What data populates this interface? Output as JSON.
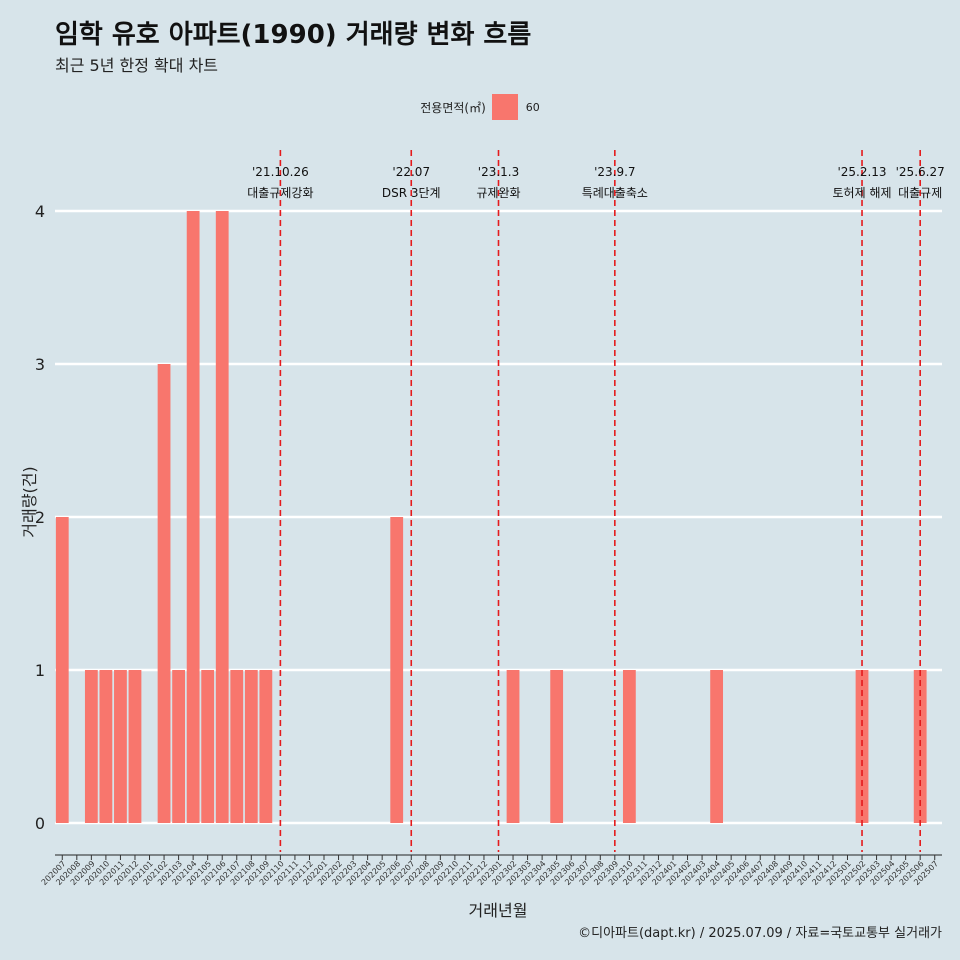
{
  "header": {
    "title": "임학 유호 아파트(1990) 거래량 변화 흐름",
    "subtitle": "최근 5년 한정 확대 차트"
  },
  "legend": {
    "title": "전용면적(㎡)",
    "label": "60",
    "color": "#f8766d"
  },
  "caption": "©디아파트(dapt.kr) / 2025.07.09 / 자료=국토교통부 실거래가",
  "colors": {
    "background": "#d7e4ea",
    "bar": "#f8766d",
    "event_line": "#e41a1c",
    "grid": "#ffffff"
  },
  "chart_data": {
    "type": "bar",
    "xlabel": "거래년월",
    "ylabel": "거래량(건)",
    "ylim": [
      0,
      4
    ],
    "yticks": [
      0,
      1,
      2,
      3,
      4
    ],
    "grid": true,
    "legend_position": "top",
    "categories": [
      "202007",
      "202008",
      "202009",
      "202010",
      "202011",
      "202012",
      "202101",
      "202102",
      "202103",
      "202104",
      "202105",
      "202106",
      "202107",
      "202108",
      "202109",
      "202110",
      "202111",
      "202112",
      "202201",
      "202202",
      "202203",
      "202204",
      "202205",
      "202206",
      "202207",
      "202208",
      "202209",
      "202210",
      "202211",
      "202212",
      "202301",
      "202302",
      "202303",
      "202304",
      "202305",
      "202306",
      "202307",
      "202308",
      "202309",
      "202310",
      "202311",
      "202312",
      "202401",
      "202402",
      "202403",
      "202404",
      "202405",
      "202406",
      "202407",
      "202408",
      "202409",
      "202410",
      "202411",
      "202412",
      "202501",
      "202502",
      "202503",
      "202504",
      "202505",
      "202506",
      "202507"
    ],
    "series": [
      {
        "name": "60",
        "values": [
          2,
          0,
          1,
          1,
          1,
          1,
          0,
          3,
          1,
          4,
          1,
          4,
          1,
          1,
          1,
          0,
          0,
          0,
          0,
          0,
          0,
          0,
          0,
          2,
          0,
          0,
          0,
          0,
          0,
          0,
          0,
          1,
          0,
          0,
          1,
          0,
          0,
          0,
          0,
          1,
          0,
          0,
          0,
          0,
          0,
          1,
          0,
          0,
          0,
          0,
          0,
          0,
          0,
          0,
          0,
          1,
          0,
          0,
          0,
          1,
          0
        ]
      }
    ],
    "events": [
      {
        "x": "202110",
        "date": "'21.10.26",
        "label": "대출규제강화"
      },
      {
        "x": "202207",
        "date": "'22.07",
        "label": "DSR 3단계"
      },
      {
        "x": "202301",
        "date": "'23.1.3",
        "label": "규제완화"
      },
      {
        "x": "202309",
        "date": "'23.9.7",
        "label": "특례대출축소"
      },
      {
        "x": "202502",
        "date": "'25.2.13",
        "label": "토허제 해제"
      },
      {
        "x": "202506",
        "date": "'25.6.27",
        "label": "대출규제"
      }
    ]
  }
}
